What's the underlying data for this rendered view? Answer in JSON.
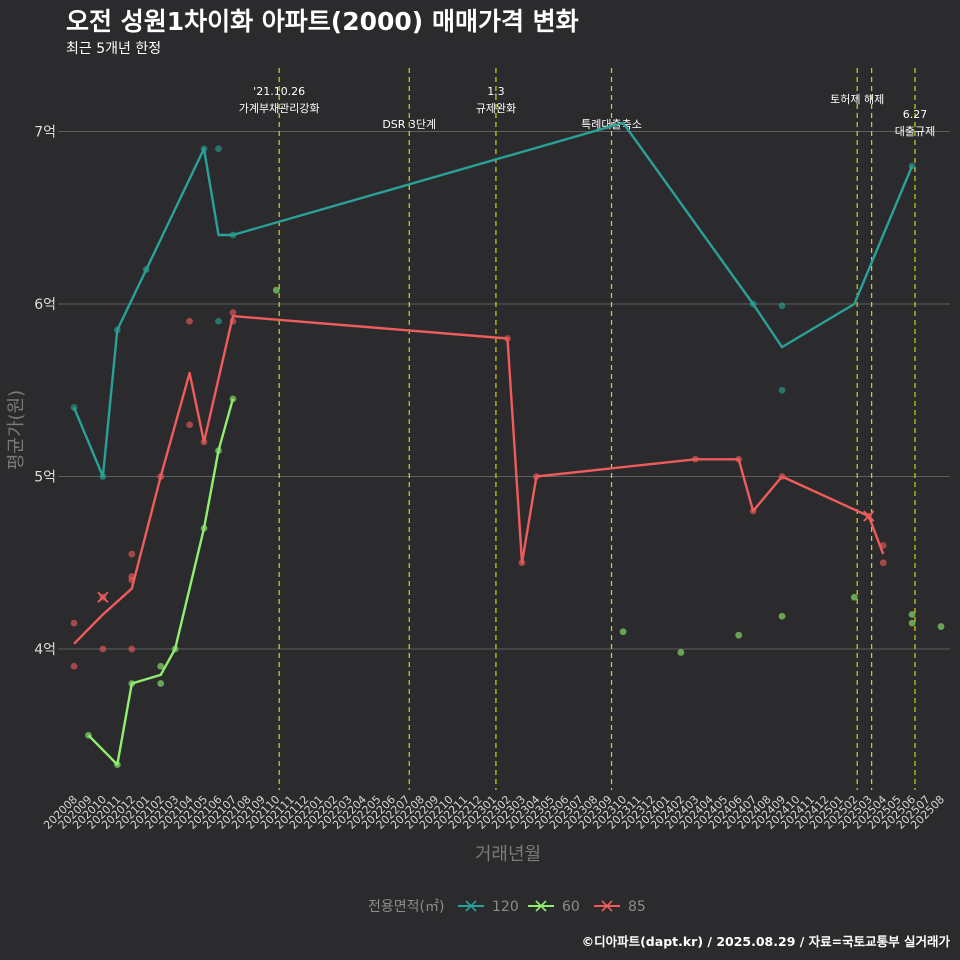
{
  "page": {
    "title": "오전 성원1차이화 아파트(2000) 매매가격 변화",
    "subtitle": "최근 5개년 한정",
    "caption": "©디아파트(dapt.kr) / 2025.08.29 / 자료=국토교통부 실거래가"
  },
  "colors": {
    "background": "#2b2a2c",
    "grid": "#5e5e5e",
    "event_line": "#d4d414",
    "series_120": "#2aa198",
    "series_60": "#90ee70",
    "series_85": "#ee5c5c"
  },
  "chart_data": {
    "type": "line",
    "title": "오전 성원1차이화 아파트(2000) 매매가격 변화",
    "xlabel": "거래년월",
    "ylabel": "평균가(원)",
    "categories": [
      "202008",
      "202009",
      "202010",
      "202011",
      "202012",
      "202101",
      "202102",
      "202103",
      "202104",
      "202105",
      "202106",
      "202107",
      "202108",
      "202109",
      "202110",
      "202111",
      "202112",
      "202201",
      "202202",
      "202203",
      "202204",
      "202205",
      "202206",
      "202207",
      "202208",
      "202209",
      "202210",
      "202211",
      "202212",
      "202301",
      "202302",
      "202303",
      "202304",
      "202305",
      "202306",
      "202307",
      "202308",
      "202309",
      "202310",
      "202311",
      "202312",
      "202401",
      "202402",
      "202403",
      "202404",
      "202405",
      "202406",
      "202407",
      "202408",
      "202409",
      "202410",
      "202411",
      "202412",
      "202501",
      "202502",
      "202503",
      "202504",
      "202505",
      "202506",
      "202507",
      "202508"
    ],
    "y_ticks": [
      {
        "value": 4.0,
        "label": "4억"
      },
      {
        "value": 5.0,
        "label": "5억"
      },
      {
        "value": 6.0,
        "label": "6억"
      },
      {
        "value": 7.0,
        "label": "7억"
      }
    ],
    "ylim": [
      3.2,
      7.3
    ],
    "y_unit": "억",
    "events": [
      {
        "index": 14.2,
        "lines": [
          "'21.10.26",
          "가계부채관리강화"
        ]
      },
      {
        "index": 23.2,
        "lines": [
          "DSR 3단계"
        ]
      },
      {
        "index": 29.2,
        "lines": [
          "1.3",
          "규제완화"
        ]
      },
      {
        "index": 37.2,
        "lines": [
          "특례대출축소"
        ]
      },
      {
        "index": 54.2,
        "lines": [
          "토허제 해제"
        ]
      },
      {
        "index": 55.2,
        "lines": []
      },
      {
        "index": 58.2,
        "lines": [
          "6.27",
          "대출규제"
        ]
      }
    ],
    "series": [
      {
        "name": "120",
        "color_key": "series_120",
        "line": [
          [
            0,
            5.4
          ],
          [
            2,
            5.0
          ],
          [
            3,
            5.85
          ],
          [
            5,
            6.2
          ],
          [
            9,
            6.9
          ],
          [
            10,
            6.4
          ],
          [
            11,
            6.4
          ],
          [
            38,
            7.05
          ],
          [
            47,
            6.0
          ],
          [
            49,
            5.75
          ],
          [
            54,
            6.0
          ],
          [
            58,
            6.8
          ]
        ],
        "points": [
          [
            0,
            5.4
          ],
          [
            2,
            5.0
          ],
          [
            3,
            5.85
          ],
          [
            5,
            6.2
          ],
          [
            9,
            6.9
          ],
          [
            10,
            6.9
          ],
          [
            10,
            5.9
          ],
          [
            11,
            6.4
          ],
          [
            47,
            6.0
          ],
          [
            49,
            5.99
          ],
          [
            49,
            5.5
          ],
          [
            58,
            6.8
          ]
        ],
        "cancelled": []
      },
      {
        "name": "60",
        "color_key": "series_60",
        "line": [
          [
            1,
            3.5
          ],
          [
            3,
            3.33
          ],
          [
            4,
            3.8
          ],
          [
            6,
            3.85
          ],
          [
            7,
            4.0
          ],
          [
            9,
            4.7
          ],
          [
            10,
            5.15
          ],
          [
            11,
            5.45
          ]
        ],
        "points": [
          [
            1,
            3.5
          ],
          [
            3,
            3.33
          ],
          [
            4,
            3.8
          ],
          [
            6,
            3.9
          ],
          [
            6,
            3.8
          ],
          [
            7,
            4.0
          ],
          [
            9,
            4.7
          ],
          [
            10,
            5.15
          ],
          [
            11,
            5.45
          ],
          [
            14,
            6.08
          ],
          [
            38,
            4.1
          ],
          [
            42,
            3.98
          ],
          [
            46,
            4.08
          ],
          [
            49,
            4.19
          ],
          [
            54,
            4.3
          ],
          [
            58,
            4.2
          ],
          [
            58,
            4.15
          ],
          [
            60,
            4.13
          ]
        ],
        "cancelled": []
      },
      {
        "name": "85",
        "color_key": "series_85",
        "line": [
          [
            0,
            4.03
          ],
          [
            2,
            4.2
          ],
          [
            4,
            4.35
          ],
          [
            6,
            5.0
          ],
          [
            8,
            5.6
          ],
          [
            9,
            5.2
          ],
          [
            11,
            5.93
          ],
          [
            30,
            5.8
          ],
          [
            31,
            4.5
          ],
          [
            32,
            5.0
          ],
          [
            43,
            5.1
          ],
          [
            46,
            5.1
          ],
          [
            47,
            4.8
          ],
          [
            49,
            5.0
          ],
          [
            55,
            4.77
          ],
          [
            56,
            4.55
          ]
        ],
        "points": [
          [
            0,
            4.15
          ],
          [
            0,
            3.9
          ],
          [
            2,
            4.0
          ],
          [
            4,
            4.55
          ],
          [
            4,
            4.42
          ],
          [
            4,
            4.4
          ],
          [
            4,
            4.0
          ],
          [
            6,
            5.0
          ],
          [
            8,
            5.9
          ],
          [
            8,
            5.3
          ],
          [
            9,
            5.2
          ],
          [
            11,
            5.95
          ],
          [
            11,
            5.9
          ],
          [
            30,
            5.8
          ],
          [
            31,
            4.5
          ],
          [
            32,
            5.0
          ],
          [
            43,
            5.1
          ],
          [
            46,
            5.1
          ],
          [
            47,
            4.8
          ],
          [
            49,
            5.0
          ],
          [
            56,
            4.6
          ],
          [
            56,
            4.5
          ]
        ],
        "cancelled": [
          [
            2,
            4.3
          ],
          [
            55,
            4.77
          ]
        ]
      }
    ],
    "legend": {
      "title": "전용면적(㎡)",
      "items": [
        {
          "label": "120",
          "color_key": "series_120"
        },
        {
          "label": "60",
          "color_key": "series_60"
        },
        {
          "label": "85",
          "color_key": "series_85"
        }
      ],
      "position": "bottom"
    }
  }
}
